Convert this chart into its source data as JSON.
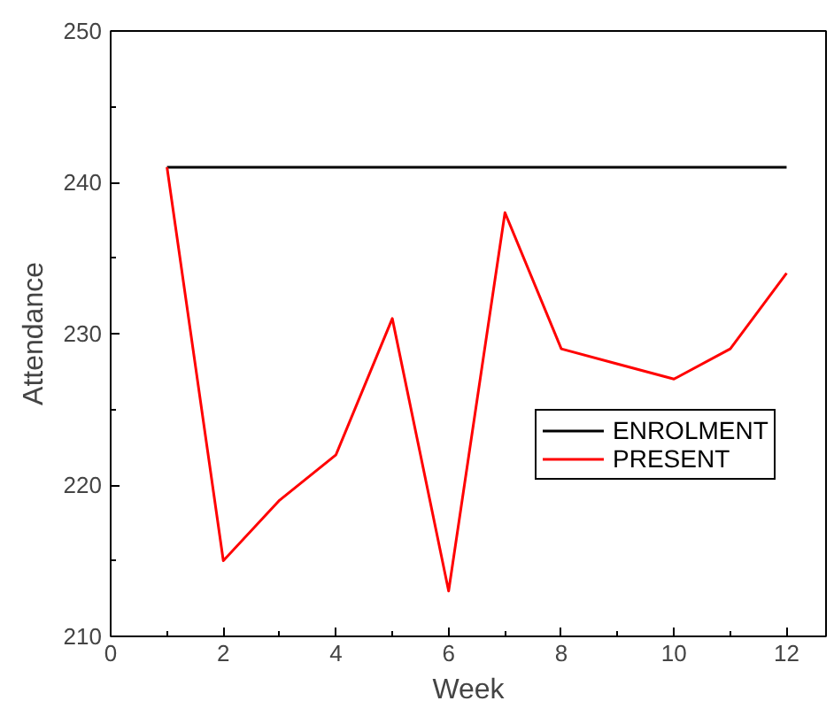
{
  "chart_data": {
    "type": "line",
    "xlabel": "Week",
    "ylabel": "Attendance",
    "x": [
      1,
      2,
      3,
      4,
      5,
      6,
      7,
      8,
      9,
      10,
      11,
      12
    ],
    "series": [
      {
        "name": "ENROLMENT",
        "color": "#000000",
        "values": [
          241,
          241,
          241,
          241,
          241,
          241,
          241,
          241,
          241,
          241,
          241,
          241
        ]
      },
      {
        "name": "PRESENT",
        "color": "#ff0000",
        "values": [
          241,
          215,
          219,
          222,
          231,
          213,
          238,
          229,
          228,
          227,
          229,
          234
        ]
      }
    ],
    "xlim": [
      0,
      12.7
    ],
    "ylim": [
      210,
      250
    ],
    "xticks": [
      0,
      2,
      4,
      6,
      8,
      10,
      12
    ],
    "yticks": [
      210,
      220,
      230,
      240,
      250
    ],
    "grid": false,
    "legend": "center right",
    "marker": "none",
    "line_style": "solid"
  }
}
